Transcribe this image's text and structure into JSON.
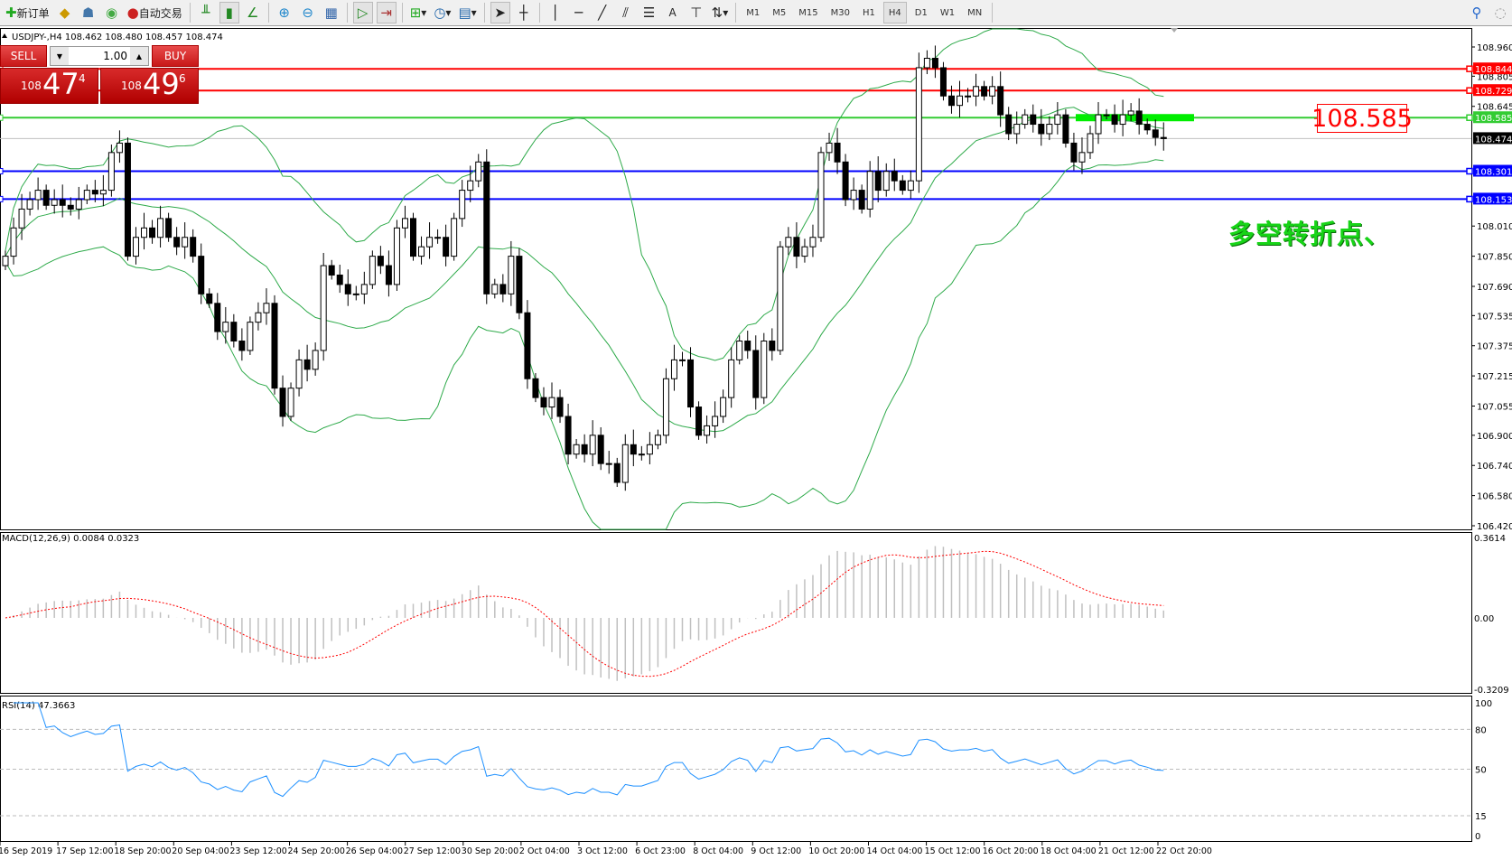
{
  "toolbar": {
    "new_order": "新订单",
    "auto_trading": "自动交易",
    "timeframes": [
      "M1",
      "M5",
      "M15",
      "M30",
      "H1",
      "H4",
      "D1",
      "W1",
      "MN"
    ],
    "active_timeframe": "H4",
    "text_tool": "A"
  },
  "chart": {
    "header": "USDJPY-,H4  108.462 108.480 108.457 108.474",
    "symbol": "USDJPY-",
    "timeframe": "H4",
    "ohlc": {
      "open": 108.462,
      "high": 108.48,
      "low": 108.457,
      "close": 108.474
    }
  },
  "trade_panel": {
    "sell_label": "SELL",
    "buy_label": "BUY",
    "lots": "1.00",
    "sell_prefix": "108",
    "sell_big": "47",
    "sell_pip": "4",
    "buy_prefix": "108",
    "buy_big": "49",
    "buy_pip": "6",
    "color": "#d01a1a"
  },
  "annotation": {
    "text": "多空转折点、",
    "price_box": "108.585",
    "text_color": "#17d417",
    "box_color": "#ff0000"
  },
  "price_axis": [
    "108.960",
    "108.805",
    "108.645",
    "108.010",
    "107.850",
    "107.690",
    "107.535",
    "107.375",
    "107.215",
    "107.055",
    "106.900",
    "106.740",
    "106.580",
    "106.420"
  ],
  "horizontal_lines": [
    {
      "price": 108.844,
      "label": "108.844",
      "color": "#ff0000"
    },
    {
      "price": 108.729,
      "label": "108.729",
      "color": "#ff0000"
    },
    {
      "price": 108.585,
      "label": "108.585",
      "color": "#33cc33"
    },
    {
      "price": 108.474,
      "label": "108.474",
      "color": "#000000",
      "line_color": "#c0c0c0"
    },
    {
      "price": 108.301,
      "label": "108.301",
      "color": "#0000ff"
    },
    {
      "price": 108.153,
      "label": "108.153",
      "color": "#0000ff"
    }
  ],
  "time_axis": [
    "16 Sep 2019",
    "17 Sep 12:00",
    "18 Sep 20:00",
    "20 Sep 04:00",
    "23 Sep 12:00",
    "24 Sep 20:00",
    "26 Sep 04:00",
    "27 Sep 12:00",
    "30 Sep 20:00",
    "2 Oct 04:00",
    "3 Oct 12:00",
    "6 Oct 23:00",
    "8 Oct 04:00",
    "9 Oct 12:00",
    "10 Oct 20:00",
    "14 Oct 04:00",
    "15 Oct 12:00",
    "16 Oct 20:00",
    "18 Oct 04:00",
    "21 Oct 12:00",
    "22 Oct 20:00"
  ],
  "macd": {
    "label": "MACD(12,26,9) 0.0084 0.0323",
    "axis": [
      "0.3614",
      "0.00",
      "-0.3209"
    ],
    "max": 0.3614,
    "min": -0.3209
  },
  "rsi": {
    "label": "RSI(14) 47.3663",
    "axis": [
      "100",
      "80",
      "50",
      "15",
      "0"
    ],
    "levels": [
      80,
      50,
      15
    ]
  },
  "chart_data": {
    "type": "candlestick",
    "closes": [
      107.85,
      108.0,
      108.1,
      108.15,
      108.2,
      108.12,
      108.15,
      108.12,
      108.1,
      108.15,
      108.2,
      108.18,
      108.2,
      108.4,
      108.45,
      107.85,
      107.95,
      108.0,
      107.95,
      108.05,
      107.95,
      107.9,
      107.95,
      107.85,
      107.65,
      107.6,
      107.45,
      107.5,
      107.4,
      107.35,
      107.5,
      107.55,
      107.6,
      107.15,
      107.0,
      107.15,
      107.3,
      107.25,
      107.35,
      107.8,
      107.75,
      107.7,
      107.65,
      107.65,
      107.7,
      107.85,
      107.8,
      107.7,
      108.0,
      108.05,
      107.85,
      107.9,
      107.95,
      107.95,
      107.85,
      108.05,
      108.2,
      108.25,
      108.35,
      107.65,
      107.7,
      107.65,
      107.85,
      107.55,
      107.2,
      107.1,
      107.05,
      107.1,
      107.0,
      106.8,
      106.85,
      106.8,
      106.9,
      106.75,
      106.75,
      106.65,
      106.85,
      106.8,
      106.8,
      106.85,
      106.9,
      107.2,
      107.3,
      107.3,
      107.05,
      106.9,
      106.95,
      107.0,
      107.1,
      107.3,
      107.4,
      107.35,
      107.1,
      107.4,
      107.35,
      107.9,
      107.95,
      107.85,
      107.9,
      107.95,
      108.4,
      108.45,
      108.35,
      108.15,
      108.2,
      108.1,
      108.3,
      108.2,
      108.3,
      108.25,
      108.2,
      108.25,
      108.85,
      108.9,
      108.85,
      108.7,
      108.65,
      108.7,
      108.7,
      108.75,
      108.7,
      108.75,
      108.6,
      108.5,
      108.55,
      108.6,
      108.55,
      108.5,
      108.55,
      108.6,
      108.45,
      108.35,
      108.4,
      108.5,
      108.6,
      108.6,
      108.55,
      108.6,
      108.62,
      108.55,
      108.52,
      108.48,
      108.474
    ],
    "ylim": [
      106.42,
      108.96
    ],
    "bollinger_color": "#2eaa4a",
    "macd_hist_color": "#c0c0c0",
    "macd_signal_color": "#ff0000",
    "rsi_color": "#1e90ff"
  }
}
